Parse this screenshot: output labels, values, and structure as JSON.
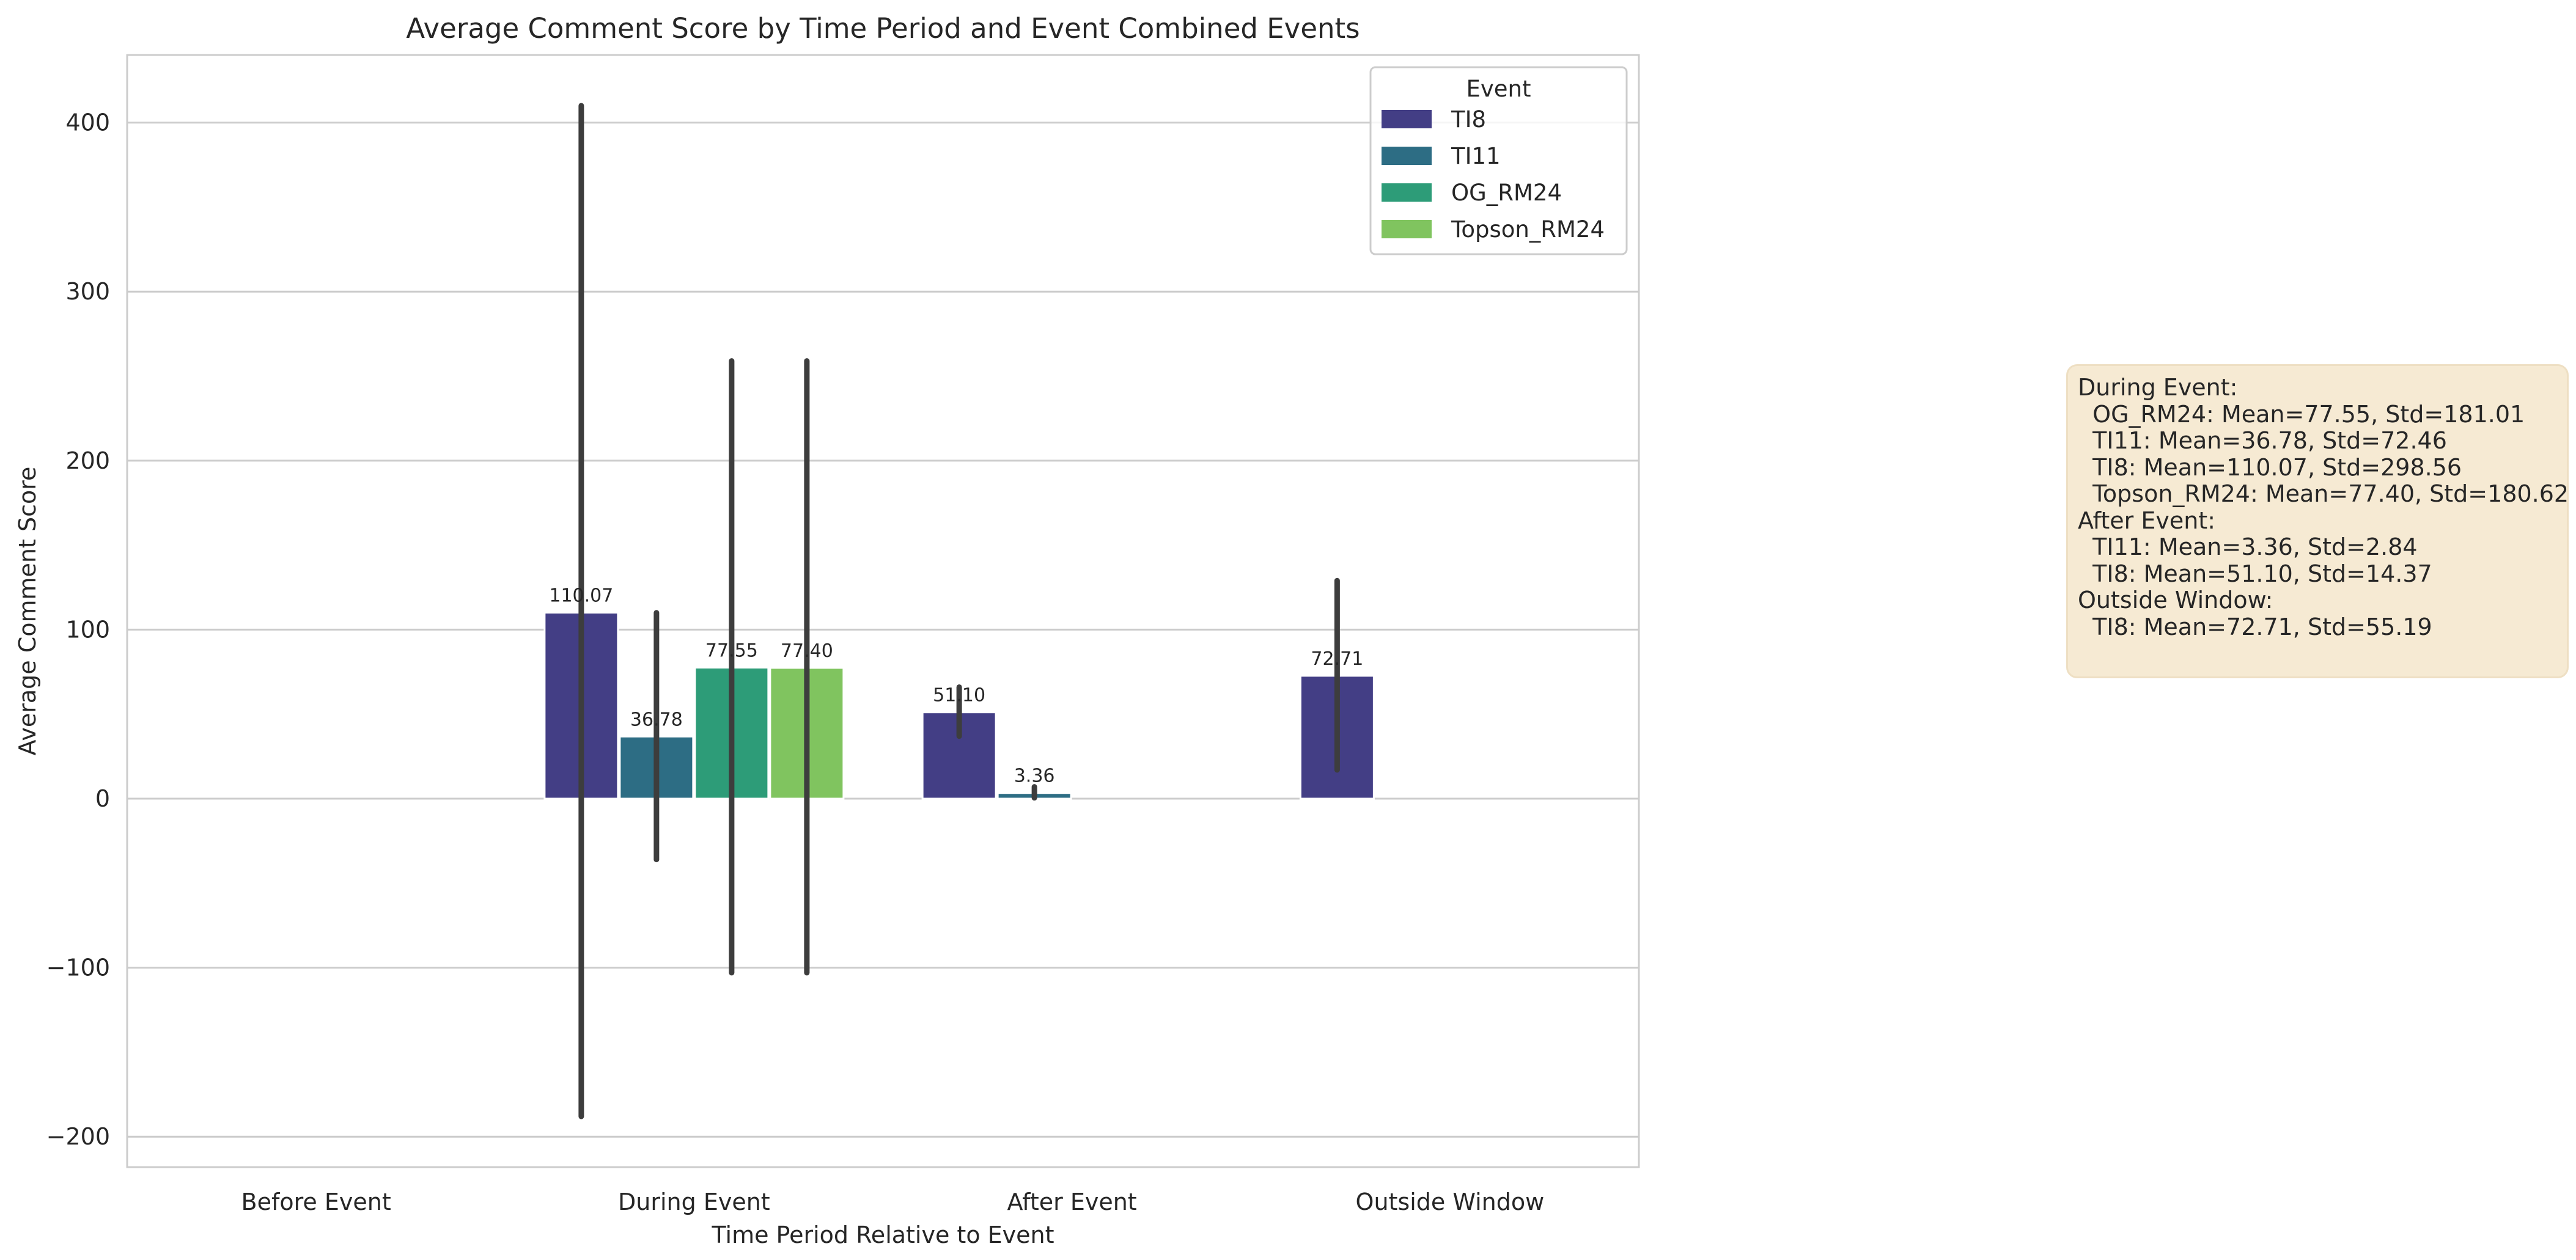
{
  "chart_data": {
    "type": "bar",
    "title": "Average Comment Score by Time Period and Event Combined Events",
    "xlabel": "Time Period Relative to Event",
    "ylabel": "Average Comment Score",
    "ylim": [
      -218,
      440
    ],
    "yticks": [
      400,
      300,
      200,
      100,
      0,
      -100,
      -200
    ],
    "ytick_labels": [
      "400",
      "300",
      "200",
      "100",
      "0",
      "−100",
      "−200"
    ],
    "categories": [
      "Before Event",
      "During Event",
      "After Event",
      "Outside Window"
    ],
    "grid": "horizontal",
    "legend": {
      "title": "Event",
      "placement": "top-right"
    },
    "series": [
      {
        "name": "TI8",
        "color": "#433e85",
        "values": [
          null,
          110.07,
          51.1,
          72.71
        ],
        "labels": [
          null,
          "110.07",
          "51.10",
          "72.71"
        ],
        "err_low": [
          null,
          -188,
          37,
          17
        ],
        "err_high": [
          null,
          410,
          66,
          129
        ]
      },
      {
        "name": "TI11",
        "color": "#2d6d84",
        "values": [
          null,
          36.78,
          3.36,
          null
        ],
        "labels": [
          null,
          "36.78",
          "3.36",
          null
        ],
        "err_low": [
          null,
          -36,
          0.5,
          null
        ],
        "err_high": [
          null,
          110,
          7,
          null
        ]
      },
      {
        "name": "OG_RM24",
        "color": "#2d9c78",
        "values": [
          null,
          77.55,
          null,
          null
        ],
        "labels": [
          null,
          "77.55",
          null,
          null
        ],
        "err_low": [
          null,
          -103,
          null,
          null
        ],
        "err_high": [
          null,
          259,
          null,
          null
        ]
      },
      {
        "name": "Topson_RM24",
        "color": "#80c45f",
        "values": [
          null,
          77.4,
          null,
          null
        ],
        "labels": [
          null,
          "77.40",
          null,
          null
        ],
        "err_low": [
          null,
          -103,
          null,
          null
        ],
        "err_high": [
          null,
          259,
          null,
          null
        ]
      }
    ],
    "annotation": {
      "lines": [
        "During Event:",
        "  OG_RM24: Mean=77.55, Std=181.01",
        "  TI11: Mean=36.78, Std=72.46",
        "  TI8: Mean=110.07, Std=298.56",
        "  Topson_RM24: Mean=77.40, Std=180.62",
        "After Event:",
        "  TI11: Mean=3.36, Std=2.84",
        "  TI8: Mean=51.10, Std=14.37",
        "Outside Window:",
        "  TI8: Mean=72.71, Std=55.19"
      ]
    }
  }
}
